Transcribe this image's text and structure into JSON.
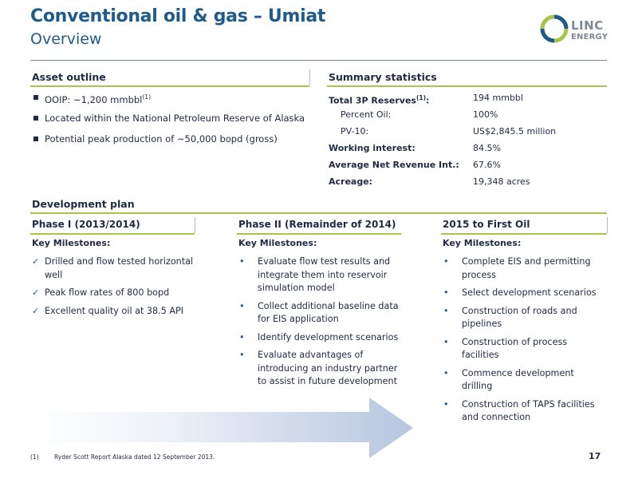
{
  "header": {
    "title": "Conventional oil & gas – Umiat",
    "subtitle": "Overview",
    "logo_text_1": "LINC",
    "logo_text_2": "ENERGY"
  },
  "asset_outline": {
    "heading": "Asset outline",
    "items": [
      {
        "pre": "OOIP: ~1,200 mmbbl",
        "sup": "(1)"
      },
      {
        "pre": "Located within the National Petroleum Reserve of Alaska",
        "sup": ""
      },
      {
        "pre": "Potential peak production of ~50,000 bopd (gross)",
        "sup": ""
      }
    ]
  },
  "summary_statistics": {
    "heading": "Summary statistics",
    "rows": [
      {
        "label": "Total 3P Reserves",
        "sup": "(1)",
        "suffix": ":",
        "value": "194 mmbbl"
      },
      {
        "label": "Percent Oil:",
        "sup": "",
        "suffix": "",
        "value": "100%"
      },
      {
        "label": "PV-10:",
        "sup": "",
        "suffix": "",
        "value": "US$2,845.5 million"
      },
      {
        "label": "Working interest:",
        "sup": "",
        "suffix": "",
        "value": "84.5%"
      },
      {
        "label": "Average Net Revenue Int.:",
        "sup": "",
        "suffix": "",
        "value": "67.6%"
      },
      {
        "label": "Acreage:",
        "sup": "",
        "suffix": "",
        "value": "19,348 acres"
      }
    ]
  },
  "development_plan": {
    "heading": "Development plan",
    "phases": [
      {
        "title": "Phase I (2013/2014)",
        "key_milestones": "Key Milestones:",
        "marker": "✓",
        "items": [
          "Drilled and flow tested horizontal well",
          "Peak flow rates of 800 bopd",
          "Excellent quality oil at 38.5 API"
        ]
      },
      {
        "title": "Phase II (Remainder of 2014)",
        "key_milestones": "Key Milestones:",
        "marker": "•",
        "items": [
          "Evaluate flow test results and integrate them into reservoir simulation model",
          "Collect additional baseline data for EIS application",
          "Identify development scenarios",
          "Evaluate  advantages of introducing an industry partner to assist in future development"
        ]
      },
      {
        "title": "2015 to First Oil",
        "key_milestones": "Key Milestones:",
        "marker": "•",
        "items": [
          "Complete EIS and permitting process",
          "Select development scenarios",
          "Construction of roads and pipelines",
          "Construction of process facilities",
          "Commence development drilling",
          "Construction of TAPS facilities and connection"
        ]
      }
    ]
  },
  "footnote": {
    "marker": "(1)",
    "text": "Ryder Scott Report Alaska dated 12 September 2013."
  },
  "page_number": "17",
  "colors": {
    "title_blue": "#1e5b8c",
    "accent_green": "#a4c64b",
    "logo_gray": "#7f8a95"
  }
}
